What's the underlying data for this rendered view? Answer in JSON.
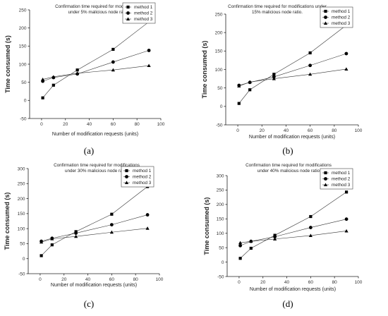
{
  "chart_data": [
    {
      "type": "line",
      "panel_label": "(a)",
      "title_lines": [
        "Confirmation time required for modifications",
        "under 5% malicious node ratio"
      ],
      "xlabel": "Number of modification requests (units)",
      "ylabel": "Time consumed (s)",
      "xlim": [
        -10,
        100
      ],
      "ylim": [
        -50,
        250
      ],
      "xticks": [
        0,
        20,
        40,
        60,
        80,
        100
      ],
      "yticks": [
        -50,
        0,
        50,
        100,
        150,
        200,
        250
      ],
      "x": [
        1,
        10,
        30,
        60,
        90
      ],
      "series": [
        {
          "name": "method 1",
          "marker": "square",
          "values": [
            7,
            42,
            84,
            141,
            217
          ]
        },
        {
          "name": "method 2",
          "marker": "circle",
          "values": [
            53,
            63,
            73,
            106,
            138
          ]
        },
        {
          "name": "method 3",
          "marker": "triangle",
          "values": [
            58,
            65,
            75,
            84,
            96
          ]
        }
      ]
    },
    {
      "type": "line",
      "panel_label": "(b)",
      "title_lines": [
        "Confirmation time required for modifications under",
        "15% malicious node ratio."
      ],
      "xlabel": "Number of modification requests (units)",
      "ylabel": "Time consumed (s)",
      "xlim": [
        -10,
        100
      ],
      "ylim": [
        -50,
        250
      ],
      "xticks": [
        0,
        20,
        40,
        60,
        80,
        100
      ],
      "yticks": [
        -50,
        0,
        50,
        100,
        150,
        200,
        250
      ],
      "x": [
        1,
        10,
        30,
        60,
        90
      ],
      "series": [
        {
          "name": "method 1",
          "marker": "square",
          "values": [
            8,
            45,
            87,
            145,
            220
          ]
        },
        {
          "name": "method 2",
          "marker": "circle",
          "values": [
            57,
            65,
            80,
            111,
            143
          ]
        },
        {
          "name": "method 3",
          "marker": "triangle",
          "values": [
            55,
            66,
            75,
            87,
            101
          ]
        }
      ]
    },
    {
      "type": "line",
      "panel_label": "(c)",
      "title_lines": [
        "Confirmation time required for modifications",
        "under 30% malicious node ratio."
      ],
      "xlabel": "Number of modification requests (units)",
      "ylabel": "Time consumed (s)",
      "xlim": [
        -10,
        100
      ],
      "ylim": [
        -50,
        300
      ],
      "xticks": [
        0,
        20,
        40,
        60,
        80,
        100
      ],
      "yticks": [
        -50,
        0,
        50,
        100,
        150,
        200,
        250,
        300
      ],
      "x": [
        1,
        10,
        30,
        60,
        90
      ],
      "series": [
        {
          "name": "method 1",
          "marker": "square",
          "values": [
            10,
            46,
            90,
            148,
            240
          ]
        },
        {
          "name": "method 2",
          "marker": "circle",
          "values": [
            58,
            68,
            85,
            113,
            146
          ]
        },
        {
          "name": "method 3",
          "marker": "triangle",
          "values": [
            55,
            66,
            74,
            88,
            101
          ]
        }
      ]
    },
    {
      "type": "line",
      "panel_label": "(d)",
      "title_lines": [
        "Confirmation time required for modifications",
        "under 40% malicious node ratio"
      ],
      "xlabel": "Number of modification requests (units)",
      "ylabel": "Time consumed (s)",
      "xlim": [
        -10,
        100
      ],
      "ylim": [
        -50,
        300
      ],
      "xticks": [
        0,
        20,
        40,
        60,
        80,
        100
      ],
      "yticks": [
        -50,
        0,
        50,
        100,
        150,
        200,
        250,
        300
      ],
      "x": [
        1,
        10,
        30,
        60,
        90
      ],
      "series": [
        {
          "name": "method 1",
          "marker": "square",
          "values": [
            13,
            48,
            93,
            158,
            243
          ]
        },
        {
          "name": "method 2",
          "marker": "circle",
          "values": [
            57,
            72,
            88,
            120,
            149
          ]
        },
        {
          "name": "method 3",
          "marker": "triangle",
          "values": [
            67,
            72,
            80,
            92,
            108
          ]
        }
      ]
    }
  ]
}
